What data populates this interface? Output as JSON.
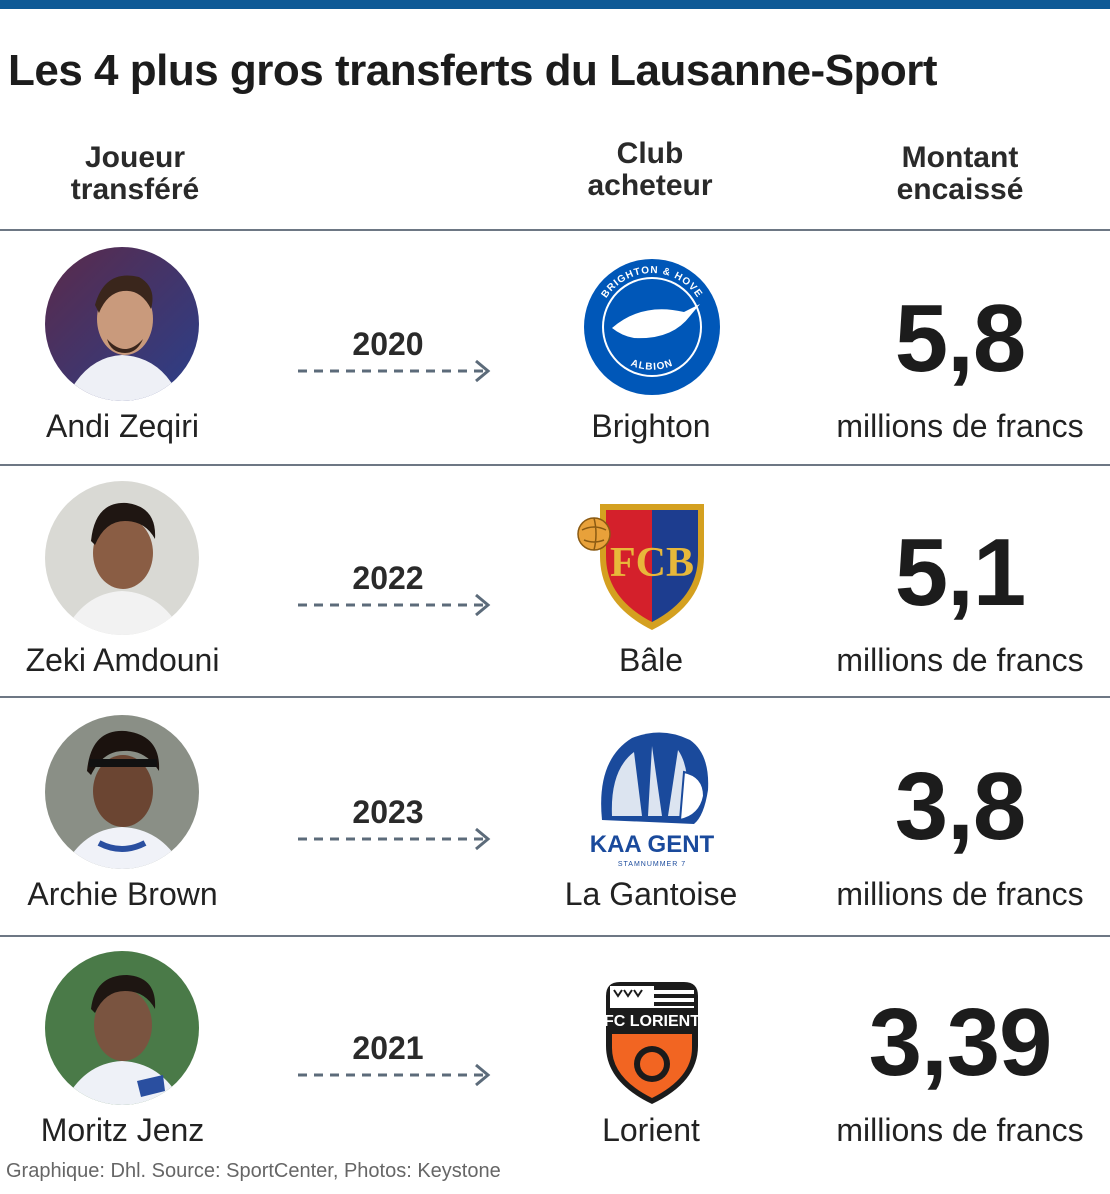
{
  "header": {
    "title": "Les 4 plus gros transferts du Lausanne-Sport",
    "col_player": [
      "Joueur",
      "transféré"
    ],
    "col_club": [
      "Club",
      "acheteur"
    ],
    "col_amount": [
      "Montant",
      "encaissé"
    ]
  },
  "rows": [
    {
      "player": "Andi Zeqiri",
      "year": "2020",
      "club": "Brighton",
      "amount": "5,8",
      "unit": "millions de francs",
      "logo_text_top": "BRIGHTON & HOVE",
      "logo_text_bottom": "ALBION"
    },
    {
      "player": "Zeki Amdouni",
      "year": "2022",
      "club": "Bâle",
      "amount": "5,1",
      "unit": "millions de francs",
      "logo_text": "FCB"
    },
    {
      "player": "Archie Brown",
      "year": "2023",
      "club": "La Gantoise",
      "amount": "3,8",
      "unit": "millions de francs",
      "logo_text": "KAA GENT",
      "logo_subtext": "STAMNUMMER 7"
    },
    {
      "player": "Moritz Jenz",
      "year": "2021",
      "club": "Lorient",
      "amount": "3,39",
      "unit": "millions de francs",
      "logo_text": "FC LORIENT"
    }
  ],
  "footer": "Graphique: Dhl. Source: SportCenter, Photos: Keystone",
  "colors": {
    "top_bar": "#0f5a96",
    "divider": "#6d7784",
    "arrow": "#5c6b7a",
    "brighton_blue": "#0057b8",
    "basel_red": "#d4202b",
    "basel_blue": "#1d3d8f",
    "gent_blue": "#1a4a9c",
    "lorient_orange": "#f26522"
  }
}
